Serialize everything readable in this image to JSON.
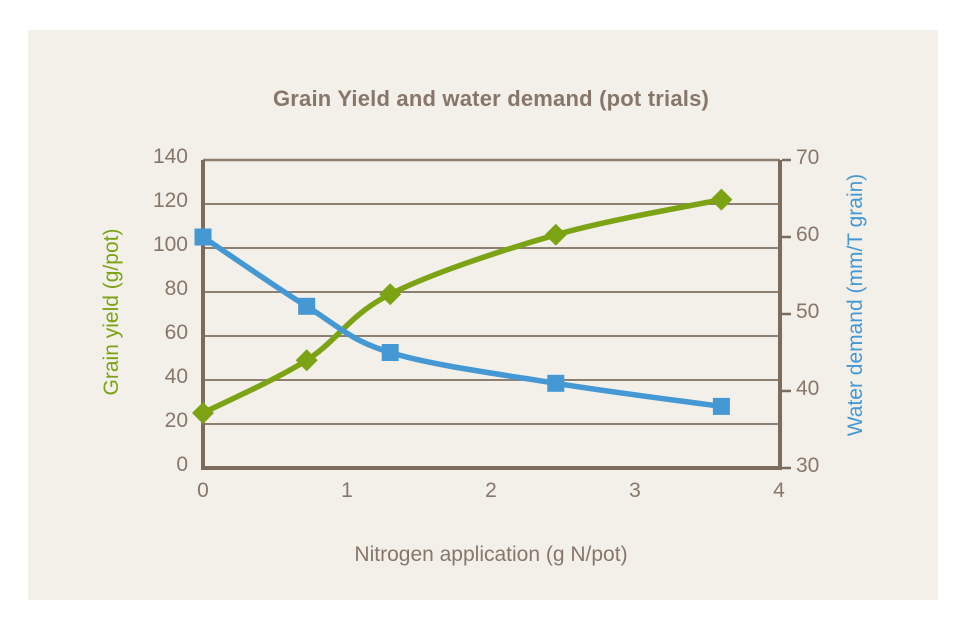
{
  "page": {
    "background_color": "#ffffff",
    "panel_color": "#f3efe9",
    "text_color": "#87776a",
    "axis_color": "#7b6c5d",
    "grid_color": "#8d8071"
  },
  "chart_data": {
    "type": "line",
    "title": "Grain Yield and water demand (pot trials)",
    "grid": "horizontal",
    "legend_position": "none",
    "x_axis": {
      "label": "Nitrogen application (g N/pot)",
      "min": 0,
      "max": 4,
      "ticks": [
        0,
        1,
        2,
        3,
        4
      ]
    },
    "y_axis_left": {
      "label": "Grain yield (g/pot)",
      "min": 0,
      "max": 140,
      "ticks": [
        0,
        20,
        40,
        60,
        80,
        100,
        120,
        140
      ],
      "color": "#7ba314"
    },
    "y_axis_right": {
      "label": "Water demand (mm/T grain)",
      "min": 30,
      "max": 70,
      "ticks": [
        30,
        40,
        50,
        60,
        70
      ],
      "color": "#4498d4"
    },
    "series": [
      {
        "name": "Grain yield",
        "axis": "left",
        "color": "#7ba314",
        "marker": "diamond",
        "line": "smooth",
        "x": [
          0,
          0.72,
          1.3,
          2.45,
          3.6
        ],
        "values": [
          25,
          49,
          79,
          106,
          122
        ]
      },
      {
        "name": "Water demand",
        "axis": "right",
        "color": "#4498d4",
        "marker": "square",
        "line": "smooth",
        "x": [
          0,
          0.72,
          1.3,
          2.45,
          3.6
        ],
        "values": [
          60,
          51,
          45,
          41,
          38
        ]
      }
    ]
  }
}
